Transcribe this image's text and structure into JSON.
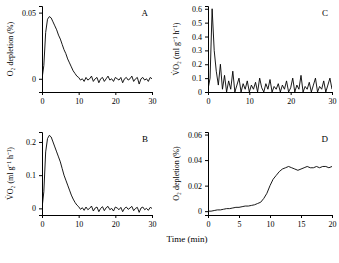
{
  "chart_data": [
    {
      "type": "line",
      "title": "A",
      "y_label": "O₂ depletion (%)",
      "x": [
        0,
        0.5,
        1,
        1.5,
        2,
        2.5,
        3,
        3.5,
        4,
        4.5,
        5,
        5.5,
        6,
        6.5,
        7,
        7.5,
        8,
        8.5,
        9,
        9.5,
        10,
        10.5,
        11,
        11.5,
        12,
        12.5,
        13,
        13.5,
        14,
        14.5,
        15,
        15.5,
        16,
        16.5,
        17,
        17.5,
        18,
        18.5,
        19,
        19.5,
        20,
        20.5,
        21,
        21.5,
        22,
        22.5,
        23,
        23.5,
        24,
        24.5,
        25,
        25.5,
        26,
        26.5,
        27,
        27.5,
        28,
        28.5,
        29,
        29.5,
        30
      ],
      "values": [
        0,
        0.01,
        0.035,
        0.045,
        0.047,
        0.046,
        0.043,
        0.04,
        0.037,
        0.033,
        0.03,
        0.026,
        0.022,
        0.019,
        0.015,
        0.012,
        0.009,
        0.006,
        0.004,
        0.002,
        0.001,
        -0.001,
        0,
        -0.002,
        0.001,
        -0.001,
        0,
        0.002,
        -0.002,
        0,
        0.001,
        -0.003,
        0,
        0.001,
        -0.002,
        0,
        0.002,
        -0.001,
        0,
        -0.002,
        0.001,
        0,
        -0.001,
        0.001,
        -0.003,
        0,
        0.001,
        -0.001,
        0,
        0.002,
        -0.002,
        0,
        0.001,
        -0.004,
        0,
        0.001,
        -0.001,
        0,
        -0.002,
        0.001,
        0
      ],
      "color": "#000000",
      "xlim": [
        0,
        30
      ],
      "xticks": [
        0,
        10,
        20,
        30
      ],
      "ylim": [
        -0.01,
        0.055
      ],
      "yticks": [
        0,
        0.05
      ]
    },
    {
      "type": "line",
      "title": "B",
      "y_label": "V̇O₂ (ml g⁻¹ h⁻¹)",
      "x_label": "Time (min)",
      "x": [
        0,
        0.5,
        1,
        1.5,
        2,
        2.5,
        3,
        3.5,
        4,
        4.5,
        5,
        5.5,
        6,
        6.5,
        7,
        7.5,
        8,
        8.5,
        9,
        9.5,
        10,
        10.5,
        11,
        11.5,
        12,
        12.5,
        13,
        13.5,
        14,
        14.5,
        15,
        15.5,
        16,
        16.5,
        17,
        17.5,
        18,
        18.5,
        19,
        19.5,
        20,
        20.5,
        21,
        21.5,
        22,
        22.5,
        23,
        23.5,
        24,
        24.5,
        25,
        25.5,
        26,
        26.5,
        27,
        27.5,
        28,
        28.5,
        29,
        29.5,
        30
      ],
      "values": [
        0,
        0.05,
        0.17,
        0.21,
        0.22,
        0.215,
        0.2,
        0.185,
        0.17,
        0.155,
        0.14,
        0.12,
        0.1,
        0.085,
        0.07,
        0.055,
        0.04,
        0.028,
        0.018,
        0.01,
        0.005,
        -0.003,
        0.002,
        -0.006,
        0.004,
        -0.004,
        0,
        0.007,
        -0.008,
        0.001,
        0.004,
        -0.01,
        0,
        0.005,
        -0.007,
        0.002,
        0.006,
        -0.004,
        0,
        -0.008,
        0.004,
        0.001,
        -0.004,
        0.003,
        -0.01,
        0,
        0.004,
        -0.003,
        0.001,
        0.006,
        -0.007,
        0,
        0.003,
        -0.012,
        0.001,
        0.004,
        -0.004,
        0,
        -0.006,
        0.003,
        0
      ],
      "color": "#000000",
      "xlim": [
        0,
        30
      ],
      "xticks": [
        0,
        10,
        20,
        30
      ],
      "ylim": [
        -0.02,
        0.23
      ],
      "yticks": [
        0,
        0.1,
        0.2
      ]
    },
    {
      "type": "line",
      "title": "C",
      "y_label": "V̇O₂ (ml g⁻¹ h⁻¹)",
      "x": [
        0,
        0.5,
        1,
        1.5,
        2,
        2.5,
        3,
        3.5,
        4,
        4.5,
        5,
        5.5,
        6,
        6.5,
        7,
        7.5,
        8,
        8.5,
        9,
        9.5,
        10,
        10.5,
        11,
        11.5,
        12,
        12.5,
        13,
        13.5,
        14,
        14.5,
        15,
        15.5,
        16,
        16.5,
        17,
        17.5,
        18,
        18.5,
        19,
        19.5,
        20,
        20.5,
        21,
        21.5,
        22,
        22.5,
        23,
        23.5,
        24,
        24.5,
        25,
        25.5,
        26,
        26.5,
        27,
        27.5,
        28,
        28.5,
        29,
        29.5,
        30
      ],
      "values": [
        0.02,
        0.1,
        0.6,
        0.3,
        0.15,
        0.05,
        0.2,
        0.02,
        0.12,
        0,
        0.08,
        0.02,
        0.15,
        0,
        0.05,
        0.1,
        0,
        0.06,
        0.02,
        0.08,
        0,
        0.05,
        0.02,
        0.07,
        0,
        0.1,
        0.03,
        0,
        0.06,
        0.02,
        0.09,
        0,
        0.04,
        0.02,
        0.06,
        0,
        0.05,
        0.02,
        0.08,
        0,
        0.03,
        0.1,
        0,
        0.05,
        0.02,
        0.12,
        0,
        0.04,
        0.02,
        0.07,
        0,
        0.05,
        0.1,
        0,
        0.04,
        0.02,
        0.08,
        0,
        0.05,
        0.1,
        0.02
      ],
      "color": "#000000",
      "xlim": [
        0,
        30
      ],
      "xticks": [
        0,
        10,
        20,
        30
      ],
      "ylim": [
        0,
        0.62
      ],
      "yticks": [
        0,
        0.1,
        0.2,
        0.3,
        0.4,
        0.5,
        0.6
      ]
    },
    {
      "type": "line",
      "title": "D",
      "y_label": "O₂ depletion (%)",
      "x": [
        0,
        0.5,
        1,
        1.5,
        2,
        2.5,
        3,
        3.5,
        4,
        4.5,
        5,
        5.5,
        6,
        6.5,
        7,
        7.5,
        8,
        8.5,
        9,
        9.5,
        10,
        10.5,
        11,
        11.5,
        12,
        12.5,
        13,
        13.5,
        14,
        14.5,
        15,
        15.5,
        16,
        16.5,
        17,
        17.5,
        18,
        18.5,
        19,
        19.5,
        20
      ],
      "values": [
        0,
        0,
        0.0005,
        0.001,
        0.001,
        0.0015,
        0.002,
        0.002,
        0.0025,
        0.003,
        0.003,
        0.0035,
        0.004,
        0.004,
        0.0045,
        0.005,
        0.006,
        0.007,
        0.01,
        0.014,
        0.02,
        0.025,
        0.028,
        0.031,
        0.033,
        0.034,
        0.035,
        0.034,
        0.033,
        0.032,
        0.033,
        0.034,
        0.035,
        0.034,
        0.034,
        0.035,
        0.034,
        0.035,
        0.035,
        0.034,
        0.035
      ],
      "color": "#000000",
      "xlim": [
        0,
        20
      ],
      "xticks": [
        0,
        5,
        10,
        15,
        20
      ],
      "ylim": [
        -0.003,
        0.062
      ],
      "yticks": [
        0,
        0.02,
        0.04,
        0.06
      ]
    }
  ]
}
